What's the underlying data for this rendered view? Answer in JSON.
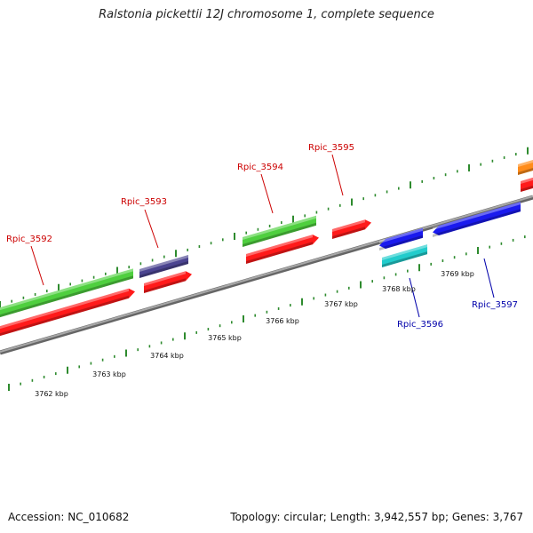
{
  "title": "Ralstonia pickettii 12J chromosome 1, complete sequence",
  "footer": {
    "accession": "Accession: NC_010682",
    "summary": "Topology: circular; Length: 3,942,557 bp; Genes: 3,767"
  },
  "colors": {
    "backbone": "#8a8a8a",
    "ticks": "#2e8b2e",
    "red": "#ff1a1a",
    "green": "#4fcf3f",
    "navy": "#4b4490",
    "blue": "#1a1aee",
    "cyan": "#22cccc",
    "orange": "#ff8c1a",
    "label_red": "#cc0000",
    "label_blue": "#0000aa"
  },
  "scale_labels": [
    "3762 kbp",
    "3763 kbp",
    "3764 kbp",
    "3765 kbp",
    "3766 kbp",
    "3767 kbp",
    "3768 kbp",
    "3769 kbp"
  ],
  "gene_labels": [
    {
      "text": "Rpic_3592",
      "color": "label_red"
    },
    {
      "text": "Rpic_3593",
      "color": "label_red"
    },
    {
      "text": "Rpic_3594",
      "color": "label_red"
    },
    {
      "text": "Rpic_3595",
      "color": "label_red"
    },
    {
      "text": "Rpic_3596",
      "color": "label_blue"
    },
    {
      "text": "Rpic_3597",
      "color": "label_blue"
    }
  ]
}
